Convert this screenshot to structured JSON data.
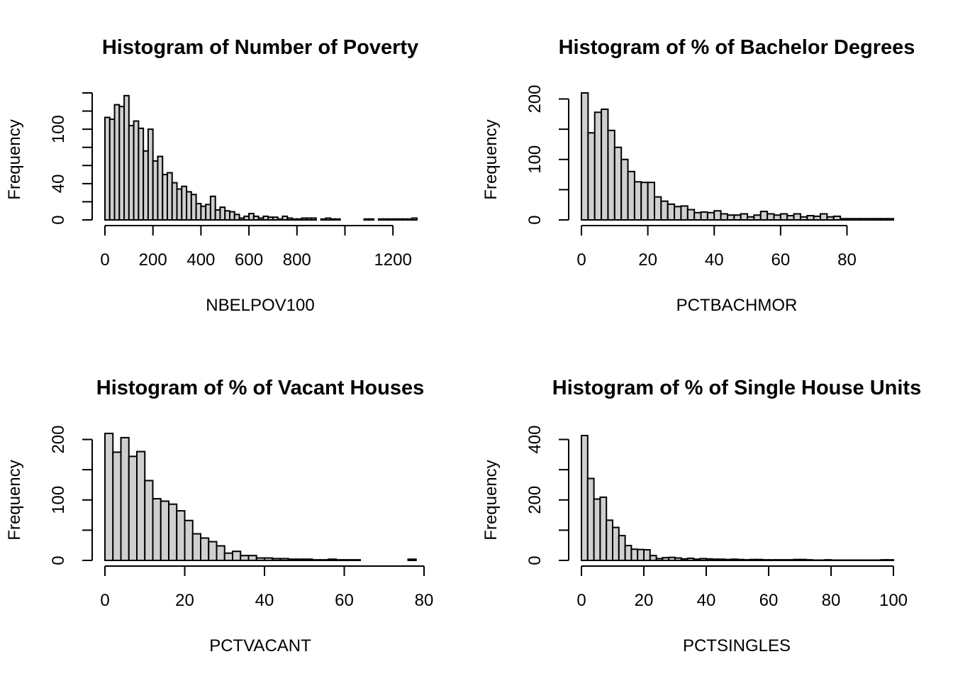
{
  "chart_data": [
    {
      "type": "bar",
      "title": "Histogram of Number of Poverty",
      "xlabel": "NBELPOV100",
      "ylabel": "Frequency",
      "xlim": [
        0,
        1300
      ],
      "ylim": [
        0,
        140
      ],
      "bin_width": 20,
      "x_ticks": [
        0,
        200,
        400,
        600,
        800,
        1000,
        1200
      ],
      "x_tick_labels": [
        "0",
        "200",
        "400",
        "600",
        "800",
        "",
        "1200"
      ],
      "y_ticks": [
        0,
        20,
        40,
        60,
        80,
        100,
        120,
        140
      ],
      "y_tick_labels": [
        "0",
        "",
        "40",
        "",
        "",
        "100",
        "",
        ""
      ],
      "values": [
        113,
        111,
        127,
        125,
        137,
        104,
        109,
        101,
        76,
        100,
        65,
        70,
        50,
        52,
        41,
        34,
        37,
        31,
        28,
        18,
        15,
        17,
        26,
        11,
        14,
        10,
        9,
        6,
        2,
        4,
        7,
        4,
        2,
        4,
        3,
        3,
        1,
        4,
        2,
        1,
        1,
        2,
        2,
        2,
        0,
        1,
        2,
        1,
        1,
        0,
        0,
        0,
        0,
        0,
        1,
        1,
        0,
        1,
        1,
        1,
        1,
        1,
        1,
        1,
        2
      ]
    },
    {
      "type": "bar",
      "title": "Histogram of % of Bachelor Degrees",
      "xlabel": "PCTBACHMOR",
      "ylabel": "Frequency",
      "xlim": [
        0,
        94
      ],
      "ylim": [
        0,
        210
      ],
      "bin_width": 2,
      "x_ticks": [
        0,
        20,
        40,
        60,
        80
      ],
      "x_tick_labels": [
        "0",
        "20",
        "40",
        "60",
        "80"
      ],
      "y_ticks": [
        0,
        50,
        100,
        150,
        200
      ],
      "y_tick_labels": [
        "0",
        "",
        "100",
        "",
        "200"
      ],
      "values": [
        210,
        144,
        178,
        183,
        148,
        120,
        100,
        80,
        63,
        62,
        62,
        38,
        31,
        26,
        22,
        23,
        17,
        12,
        13,
        12,
        15,
        10,
        8,
        8,
        10,
        5,
        8,
        14,
        10,
        8,
        10,
        7,
        10,
        5,
        7,
        6,
        10,
        5,
        6,
        2,
        2,
        2,
        2,
        2,
        2,
        2,
        2
      ]
    },
    {
      "type": "bar",
      "title": "Histogram of % of Vacant Houses",
      "xlabel": "PCTVACANT",
      "ylabel": "Frequency",
      "xlim": [
        0,
        80
      ],
      "ylim": [
        0,
        210
      ],
      "bin_width": 2,
      "x_ticks": [
        0,
        20,
        40,
        60,
        80
      ],
      "x_tick_labels": [
        "0",
        "20",
        "40",
        "60",
        "80"
      ],
      "y_ticks": [
        0,
        50,
        100,
        150,
        200
      ],
      "y_tick_labels": [
        "0",
        "",
        "100",
        "",
        "200"
      ],
      "values": [
        210,
        179,
        203,
        172,
        180,
        132,
        102,
        98,
        93,
        82,
        66,
        44,
        37,
        31,
        24,
        12,
        15,
        8,
        8,
        4,
        4,
        3,
        3,
        2,
        2,
        2,
        1,
        1,
        2,
        1,
        1,
        1,
        0,
        0,
        0,
        0,
        0,
        0,
        2
      ]
    },
    {
      "type": "bar",
      "title": "Histogram of % of Single House Units",
      "xlabel": "PCTSINGLES",
      "ylabel": "Frequency",
      "xlim": [
        0,
        100
      ],
      "ylim": [
        0,
        420
      ],
      "bin_width": 2,
      "x_ticks": [
        0,
        20,
        40,
        60,
        80,
        100
      ],
      "x_tick_labels": [
        "0",
        "20",
        "40",
        "60",
        "80",
        "100"
      ],
      "y_ticks": [
        0,
        100,
        200,
        300,
        400
      ],
      "y_tick_labels": [
        "0",
        "",
        "200",
        "",
        "400"
      ],
      "values": [
        413,
        271,
        203,
        209,
        133,
        109,
        82,
        49,
        37,
        36,
        35,
        16,
        6,
        9,
        10,
        8,
        5,
        7,
        4,
        6,
        5,
        4,
        4,
        3,
        4,
        3,
        2,
        3,
        3,
        2,
        2,
        2,
        2,
        2,
        3,
        3,
        2,
        1,
        1,
        2,
        1,
        1,
        1,
        1,
        1,
        1,
        1,
        1,
        2,
        2
      ]
    }
  ]
}
